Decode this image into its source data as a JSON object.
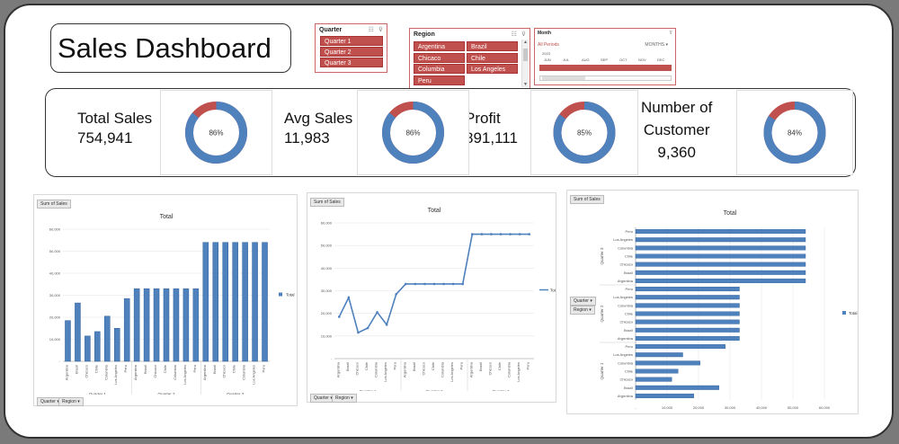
{
  "title": "Sales Dashboard",
  "slicers": {
    "quarter": {
      "title": "Quarter",
      "items": [
        "Quarter 1",
        "Quarter 2",
        "Quarter 3"
      ]
    },
    "region": {
      "title": "Region",
      "items": [
        "Argentina",
        "Brazil",
        "Chicaco",
        "Chile",
        "Columbia",
        "Los Angeles",
        "Peru"
      ]
    },
    "month": {
      "title": "Month",
      "all_periods": "All Periods",
      "unit": "MONTHS",
      "year": "2023",
      "months": [
        "JUN",
        "JUL",
        "AUG",
        "SEP",
        "OCT",
        "NOV",
        "DEC"
      ]
    }
  },
  "kpis": [
    {
      "label": "Total Sales",
      "value": "754,941",
      "pct": 86,
      "pct_label": "86%"
    },
    {
      "label": "Avg Sales",
      "value": "11,983",
      "pct": 86,
      "pct_label": "86%"
    },
    {
      "label": "Profit",
      "value": "891,111",
      "pct": 85,
      "pct_label": "85%"
    },
    {
      "label": "Number of Customer",
      "label_line1": "Number of",
      "label_line2": "Customer",
      "value": "9,360",
      "pct": 84,
      "pct_label": "84%"
    }
  ],
  "colors": {
    "series": "#4f81bd",
    "series_dark": "#2f5f9a",
    "donut_rest": "#c0504d",
    "chip": "#c0504d"
  },
  "chart_common": {
    "field_button": "Sum of Sales",
    "filter_quarter": "Quarter",
    "filter_region": "Region",
    "legend": "Total",
    "title": "Total"
  },
  "chart_data": [
    {
      "type": "bar",
      "title": "Total",
      "groups": [
        "Quarter 1",
        "Quarter 2",
        "Quarter 3"
      ],
      "categories": [
        "Argentina",
        "Brazil",
        "Chicaco",
        "Chile",
        "Columbia",
        "Los Angeles",
        "Peru",
        "Argentina",
        "Brazil",
        "Chicaco",
        "Chile",
        "Columbia",
        "Los Angeles",
        "Peru",
        "Argentina",
        "Brazil",
        "Chicaco",
        "Chile",
        "Columbia",
        "Los Angeles",
        "Peru"
      ],
      "series": [
        {
          "name": "Total",
          "values": [
            18500,
            26500,
            11500,
            13500,
            20500,
            15000,
            28500,
            33000,
            33000,
            33000,
            33000,
            33000,
            33000,
            33000,
            54000,
            54000,
            54000,
            54000,
            54000,
            54000,
            54000
          ]
        }
      ],
      "ylim": [
        0,
        60000
      ],
      "yticks": [
        "-",
        "10,000",
        "20,000",
        "30,000",
        "40,000",
        "50,000",
        "60,000"
      ]
    },
    {
      "type": "line",
      "title": "Total",
      "groups": [
        "Quarter 1",
        "Quarter 2",
        "Quarter 3"
      ],
      "categories": [
        "Argentina",
        "Brazil",
        "Chicaco",
        "Chile",
        "Columbia",
        "Los Angeles",
        "Peru",
        "Argentina",
        "Brazil",
        "Chicaco",
        "Chile",
        "Columbia",
        "Los Angeles",
        "Peru",
        "Argentina",
        "Brazil",
        "Chicaco",
        "Chile",
        "Columbia",
        "Los Angeles",
        "Peru"
      ],
      "series": [
        {
          "name": "Total",
          "values": [
            18500,
            27000,
            11500,
            13500,
            20500,
            15000,
            28500,
            33000,
            33000,
            33000,
            33000,
            33000,
            33000,
            33000,
            55000,
            55000,
            55000,
            55000,
            55000,
            55000,
            55000
          ]
        }
      ],
      "ylim": [
        0,
        60000
      ],
      "yticks": [
        "-",
        "10,000",
        "20,000",
        "30,000",
        "40,000",
        "50,000",
        "60,000"
      ]
    },
    {
      "type": "bar",
      "orientation": "horizontal",
      "title": "Total",
      "groups": [
        "Quarter 3",
        "Quarter 2",
        "Quarter 1"
      ],
      "categories": [
        "Peru",
        "Los Angeles",
        "Columbia",
        "Chile",
        "Chicaco",
        "Brazil",
        "Argentina",
        "Peru",
        "Los Angeles",
        "Columbia",
        "Chile",
        "Chicaco",
        "Brazil",
        "Argentina",
        "Peru",
        "Los Angeles",
        "Columbia",
        "Chile",
        "Chicaco",
        "Brazil",
        "Argentina"
      ],
      "series": [
        {
          "name": "Total",
          "values": [
            54000,
            54000,
            54000,
            54000,
            54000,
            54000,
            54000,
            33000,
            33000,
            33000,
            33000,
            33000,
            33000,
            33000,
            28500,
            15000,
            20500,
            13500,
            11500,
            26500,
            18500
          ]
        }
      ],
      "xlim": [
        0,
        60000
      ],
      "xticks": [
        "-",
        "10,000",
        "20,000",
        "30,000",
        "40,000",
        "50,000",
        "60,000"
      ]
    }
  ]
}
